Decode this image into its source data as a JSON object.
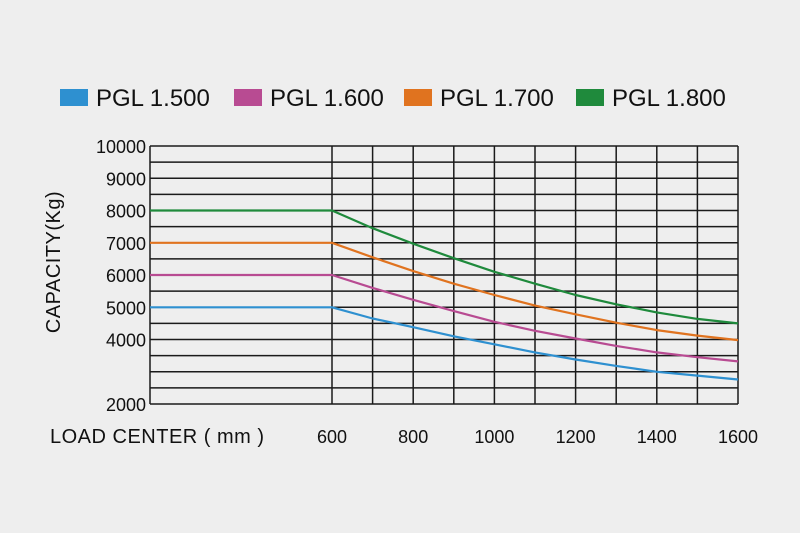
{
  "chart_data": {
    "type": "line",
    "title": "",
    "xlabel": "LOAD CENTER ( mm )",
    "ylabel": "CAPACITY(Kg)",
    "xlim": [
      0,
      1600
    ],
    "ylim": [
      2000,
      10000
    ],
    "x_ticks": [
      600,
      800,
      1000,
      1200,
      1400,
      1600
    ],
    "x_ticks_labels": [
      "600",
      "800",
      "1000",
      "1200",
      "1400",
      "1600"
    ],
    "y_tick_labels": [
      "10000",
      "9000",
      "8000",
      "7000",
      "6000",
      "5000",
      "4000",
      "2000"
    ],
    "y_tick_values": [
      10000,
      9000,
      8000,
      7000,
      6000,
      5000,
      4000,
      2000
    ],
    "grid": true,
    "legend_position": "top",
    "series": [
      {
        "name": "PGL 1.500",
        "color": "#2e90d0",
        "x": [
          0,
          600,
          700,
          800,
          900,
          1000,
          1100,
          1200,
          1300,
          1400,
          1500,
          1600
        ],
        "y": [
          5000,
          5000,
          4650,
          4380,
          4100,
          3850,
          3600,
          3380,
          3180,
          3000,
          2880,
          2760
        ]
      },
      {
        "name": "PGL 1.600",
        "color": "#b84b92",
        "x": [
          0,
          600,
          700,
          800,
          900,
          1000,
          1100,
          1200,
          1300,
          1400,
          1500,
          1600
        ],
        "y": [
          6000,
          6000,
          5600,
          5230,
          4880,
          4550,
          4270,
          4030,
          3800,
          3600,
          3450,
          3320
        ]
      },
      {
        "name": "PGL 1.700",
        "color": "#e0731f",
        "x": [
          0,
          600,
          700,
          800,
          900,
          1000,
          1100,
          1200,
          1300,
          1400,
          1500,
          1600
        ],
        "y": [
          7000,
          7000,
          6550,
          6120,
          5730,
          5380,
          5050,
          4780,
          4520,
          4290,
          4120,
          3980
        ]
      },
      {
        "name": "PGL 1.800",
        "color": "#1f8a3c",
        "x": [
          0,
          600,
          700,
          800,
          900,
          1000,
          1100,
          1200,
          1300,
          1400,
          1500,
          1600
        ],
        "y": [
          8000,
          8000,
          7450,
          6970,
          6520,
          6100,
          5730,
          5380,
          5090,
          4840,
          4640,
          4500
        ]
      }
    ]
  }
}
